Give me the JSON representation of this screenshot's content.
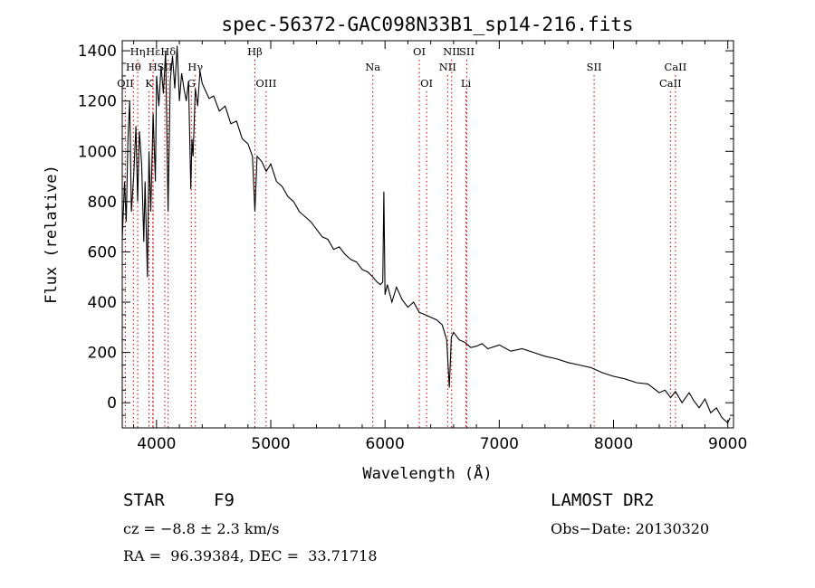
{
  "chart_data": {
    "type": "line",
    "title": "spec-56372-GAC098N33B1_sp14-216.fits",
    "xlabel": "Wavelength (Å)",
    "ylabel": "Flux (relative)",
    "xlim": [
      3700,
      9050
    ],
    "ylim": [
      -100,
      1440
    ],
    "xticks": [
      4000,
      5000,
      6000,
      7000,
      8000,
      9000
    ],
    "yticks": [
      0,
      200,
      400,
      600,
      800,
      1000,
      1200,
      1400
    ],
    "grid": false,
    "line_color": "#000000",
    "marker_color": "#cc0000",
    "series": [
      {
        "x": [
          3700,
          3720,
          3735,
          3750,
          3765,
          3780,
          3800,
          3820,
          3835,
          3850,
          3870,
          3889,
          3900,
          3920,
          3934,
          3950,
          3970,
          3990,
          4000,
          4020,
          4040,
          4060,
          4080,
          4101,
          4120,
          4140,
          4160,
          4180,
          4200,
          4220,
          4240,
          4260,
          4280,
          4300,
          4310,
          4320,
          4340,
          4360,
          4380,
          4400,
          4430,
          4460,
          4500,
          4550,
          4600,
          4650,
          4700,
          4750,
          4800,
          4840,
          4861,
          4880,
          4920,
          4960,
          5000,
          5050,
          5100,
          5150,
          5200,
          5250,
          5300,
          5350,
          5400,
          5450,
          5500,
          5550,
          5600,
          5650,
          5700,
          5750,
          5800,
          5850,
          5893,
          5930,
          5960,
          5980,
          5990,
          6000,
          6020,
          6060,
          6100,
          6150,
          6200,
          6250,
          6300,
          6350,
          6400,
          6450,
          6500,
          6540,
          6563,
          6580,
          6600,
          6650,
          6700,
          6750,
          6800,
          6850,
          6900,
          7000,
          7100,
          7200,
          7300,
          7400,
          7500,
          7600,
          7700,
          7800,
          7900,
          8000,
          8100,
          8200,
          8300,
          8400,
          8450,
          8500,
          8542,
          8600,
          8662,
          8700,
          8750,
          8800,
          8850,
          8900,
          8950,
          9000,
          9020
        ],
        "values": [
          650,
          880,
          720,
          1050,
          1200,
          760,
          900,
          1100,
          800,
          1080,
          950,
          640,
          880,
          500,
          1000,
          760,
          1150,
          880,
          1300,
          1180,
          1340,
          1230,
          1400,
          760,
          1280,
          1380,
          1250,
          1420,
          1200,
          1310,
          1250,
          1200,
          1280,
          850,
          1050,
          980,
          1250,
          1180,
          1320,
          1270,
          1240,
          1210,
          1220,
          1160,
          1180,
          1110,
          1120,
          1050,
          1030,
          980,
          760,
          980,
          960,
          920,
          950,
          880,
          860,
          820,
          800,
          760,
          740,
          720,
          690,
          660,
          650,
          610,
          620,
          590,
          570,
          560,
          530,
          520,
          500,
          480,
          470,
          480,
          840,
          430,
          470,
          400,
          460,
          410,
          380,
          400,
          360,
          350,
          340,
          330,
          310,
          250,
          60,
          260,
          280,
          250,
          240,
          220,
          225,
          235,
          215,
          230,
          205,
          215,
          200,
          185,
          175,
          160,
          150,
          140,
          120,
          105,
          95,
          80,
          75,
          40,
          50,
          20,
          45,
          0,
          40,
          10,
          -20,
          15,
          -40,
          -20,
          -60,
          -80,
          -60
        ]
      }
    ],
    "lines": [
      {
        "label": "OII",
        "x": 3727,
        "row": 3
      },
      {
        "label": "Hθ",
        "x": 3798,
        "row": 2
      },
      {
        "label": "Hη",
        "x": 3835,
        "row": 1
      },
      {
        "label": "K",
        "x": 3934,
        "row": 3
      },
      {
        "label": "Hε",
        "x": 3970,
        "row": 1
      },
      {
        "label": "H",
        "x": 3968,
        "row": 2
      },
      {
        "label": "SII",
        "x": 4072,
        "row": 2
      },
      {
        "label": "Hδ",
        "x": 4102,
        "row": 1
      },
      {
        "label": "G",
        "x": 4305,
        "row": 3
      },
      {
        "label": "Hγ",
        "x": 4340,
        "row": 2
      },
      {
        "label": "Hβ",
        "x": 4861,
        "row": 1
      },
      {
        "label": "OIII",
        "x": 4959,
        "row": 3
      },
      {
        "label": "Na",
        "x": 5893,
        "row": 2
      },
      {
        "label": "OI",
        "x": 6300,
        "row": 1
      },
      {
        "label": "OI",
        "x": 6364,
        "row": 3
      },
      {
        "label": "NII",
        "x": 6548,
        "row": 2
      },
      {
        "label": "NII",
        "x": 6583,
        "row": 1
      },
      {
        "label": "SII",
        "x": 6716,
        "row": 1
      },
      {
        "label": "Li",
        "x": 6708,
        "row": 3
      },
      {
        "label": "SII",
        "x": 7830,
        "row": 2
      },
      {
        "label": "CaII",
        "x": 8542,
        "row": 2
      },
      {
        "label": "CaII",
        "x": 8498,
        "row": 3
      }
    ]
  },
  "info": {
    "object_type": "STAR",
    "subclass": "F9",
    "survey": "LAMOST DR2",
    "cz": "cz = −8.8 ± 2.3 km/s",
    "obs_date": "Obs−Date: 20130320",
    "coords": "RA =  96.39384, DEC =  33.71718"
  }
}
